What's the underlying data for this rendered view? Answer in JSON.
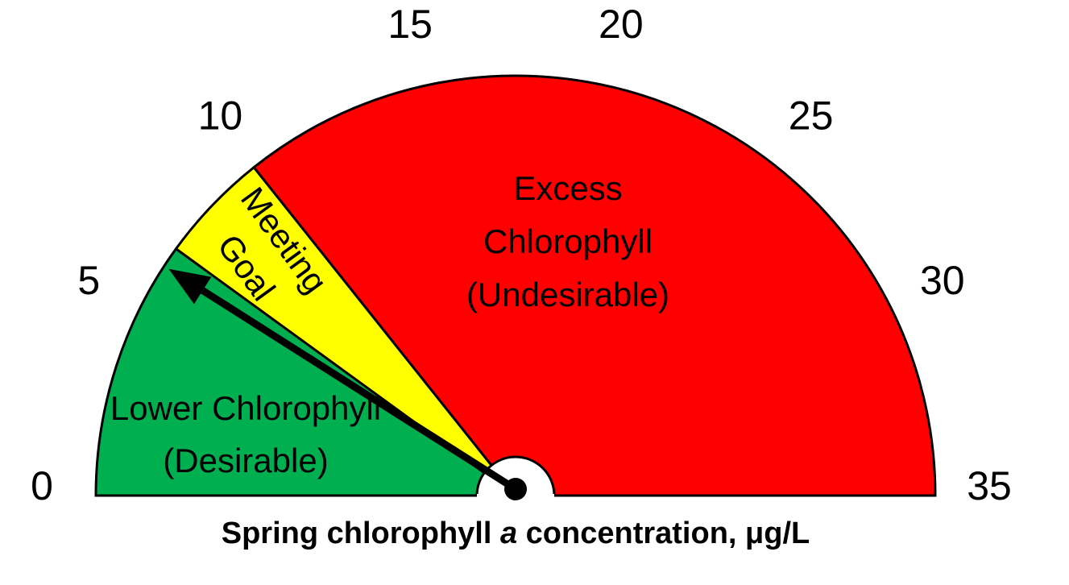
{
  "chart_data": {
    "type": "gauge",
    "xlabel": [
      "Spring chlorophyll ",
      "a",
      " concentration, μg/L"
    ],
    "ylim": [
      0,
      35
    ],
    "yticks": [
      0,
      5,
      10,
      15,
      20,
      25,
      30,
      35
    ],
    "bands": [
      {
        "label": [
          "Lower Chlorophyll",
          "(Desirable)"
        ],
        "color": "#00b050",
        "from": 0,
        "to": 7
      },
      {
        "label": [
          "Meeting",
          "Goal"
        ],
        "color": "#ffff00",
        "from": 7,
        "to": 10
      },
      {
        "label": [
          "Excess",
          "Chlorophyll",
          "(Undesirable)"
        ],
        "color": "#ff0000",
        "from": 10,
        "to": 35
      }
    ],
    "value": 6.3
  }
}
